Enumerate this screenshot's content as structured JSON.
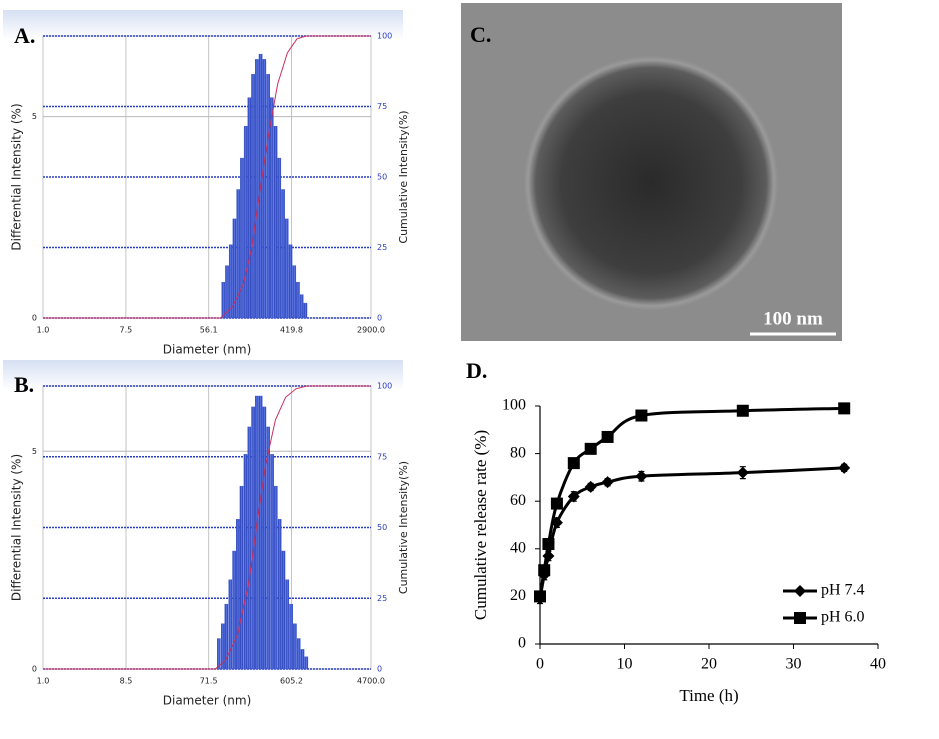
{
  "panel_labels": [
    "A.",
    "B.",
    "C.",
    "D."
  ],
  "image": {
    "scale_bar": "100 nm"
  },
  "chart_data": [
    {
      "type": "bar",
      "xlabel": "Diameter (nm)",
      "ylabel": "Differential Intensity (%)",
      "y2label": "Cumulative Intensity(%)",
      "xscale": "log",
      "xlim": [
        1,
        2900
      ],
      "xticks": [
        {
          "value": 1,
          "label": "1.0"
        },
        7.5,
        56.1,
        419.8,
        {
          "value": 2900,
          "label": "2900.0"
        }
      ],
      "ylim": [
        0,
        7
      ],
      "yticks": [
        0,
        5
      ],
      "y2lim": [
        0,
        100
      ],
      "y2ticks": [
        0,
        25,
        50,
        75,
        100
      ],
      "grid": true,
      "series": [
        {
          "type": "bar",
          "color": "#3a56d0",
          "x": [
            80,
            87.6,
            95.9,
            105,
            115,
            126,
            138,
            151,
            165,
            181,
            198,
            217,
            238,
            260,
            285,
            312,
            342,
            374,
            410,
            449,
            491,
            538,
            589
          ],
          "values": [
            0.89,
            1.3,
            1.82,
            2.46,
            3.19,
            3.97,
            4.76,
            5.47,
            6.05,
            6.42,
            6.55,
            6.42,
            6.05,
            5.47,
            4.76,
            3.97,
            3.19,
            2.46,
            1.82,
            1.3,
            0.89,
            0.58,
            0.37
          ]
        },
        {
          "type": "line",
          "axis": "y2",
          "color": "#c8305a",
          "x": [
            1,
            75,
            100,
            130,
            160,
            195,
            240,
            300,
            380,
            480,
            600,
            2900
          ],
          "values": [
            0,
            0,
            4,
            12,
            25,
            45,
            65,
            83,
            94,
            99,
            100,
            100
          ]
        }
      ]
    },
    {
      "type": "bar",
      "xlabel": "Diameter (nm)",
      "ylabel": "Differential Intensity (%)",
      "y2label": "Cumulative Intensity(%)",
      "xscale": "log",
      "xlim": [
        1,
        4700
      ],
      "xticks": [
        {
          "value": 1,
          "label": "1.0"
        },
        8.5,
        71.5,
        605.2,
        {
          "value": 4700,
          "label": "4700.0"
        }
      ],
      "ylim": [
        0,
        6.5
      ],
      "yticks": [
        0,
        5
      ],
      "y2lim": [
        0,
        100
      ],
      "y2ticks": [
        0,
        25,
        50,
        75,
        100
      ],
      "grid": true,
      "series": [
        {
          "type": "bar",
          "color": "#3a56d0",
          "x": [
            93,
            103,
            113,
            125,
            138,
            152,
            167,
            185,
            204,
            225,
            248,
            273,
            301,
            332,
            367,
            404,
            446,
            492,
            543,
            599,
            661,
            729,
            804,
            887
          ],
          "values": [
            0.7,
            1.04,
            1.49,
            2.05,
            2.71,
            3.44,
            4.2,
            4.93,
            5.56,
            6.02,
            6.27,
            6.27,
            6.02,
            5.56,
            4.93,
            4.2,
            3.44,
            2.71,
            2.05,
            1.49,
            1.04,
            0.7,
            0.45,
            0.28
          ]
        },
        {
          "type": "line",
          "axis": "y2",
          "color": "#c8305a",
          "x": [
            1,
            85,
            110,
            150,
            200,
            250,
            310,
            400,
            520,
            680,
            900,
            4700
          ],
          "values": [
            0,
            0,
            3,
            12,
            30,
            52,
            72,
            88,
            96,
            99,
            100,
            100
          ]
        }
      ]
    },
    {
      "type": "line",
      "xlabel": "Time (h)",
      "ylabel": "Cumulative release rate (%)",
      "xlim": [
        0,
        40
      ],
      "xticks": [
        0,
        10,
        20,
        30,
        40
      ],
      "ylim": [
        0,
        100
      ],
      "yticks": [
        0,
        20,
        40,
        60,
        80,
        100
      ],
      "legend": "lower right",
      "x": [
        0,
        0.5,
        1,
        2,
        4,
        6,
        8,
        12,
        24,
        36
      ],
      "series": [
        {
          "name": "pH 7.4",
          "marker": "diamond",
          "color": "#000000",
          "values": [
            19,
            29,
            37,
            51,
            62,
            66,
            68,
            70.5,
            72,
            74
          ],
          "errors": [
            2,
            2,
            2,
            2,
            2,
            1.5,
            1.5,
            2,
            2.5,
            1.5
          ]
        },
        {
          "name": "pH 6.0",
          "marker": "square",
          "color": "#000000",
          "values": [
            20,
            31,
            42,
            59,
            76,
            82,
            87,
            96,
            98,
            99
          ],
          "errors": [
            2,
            2,
            2,
            2,
            2,
            1.5,
            1.5,
            1.5,
            1.5,
            1.5
          ]
        }
      ]
    }
  ]
}
